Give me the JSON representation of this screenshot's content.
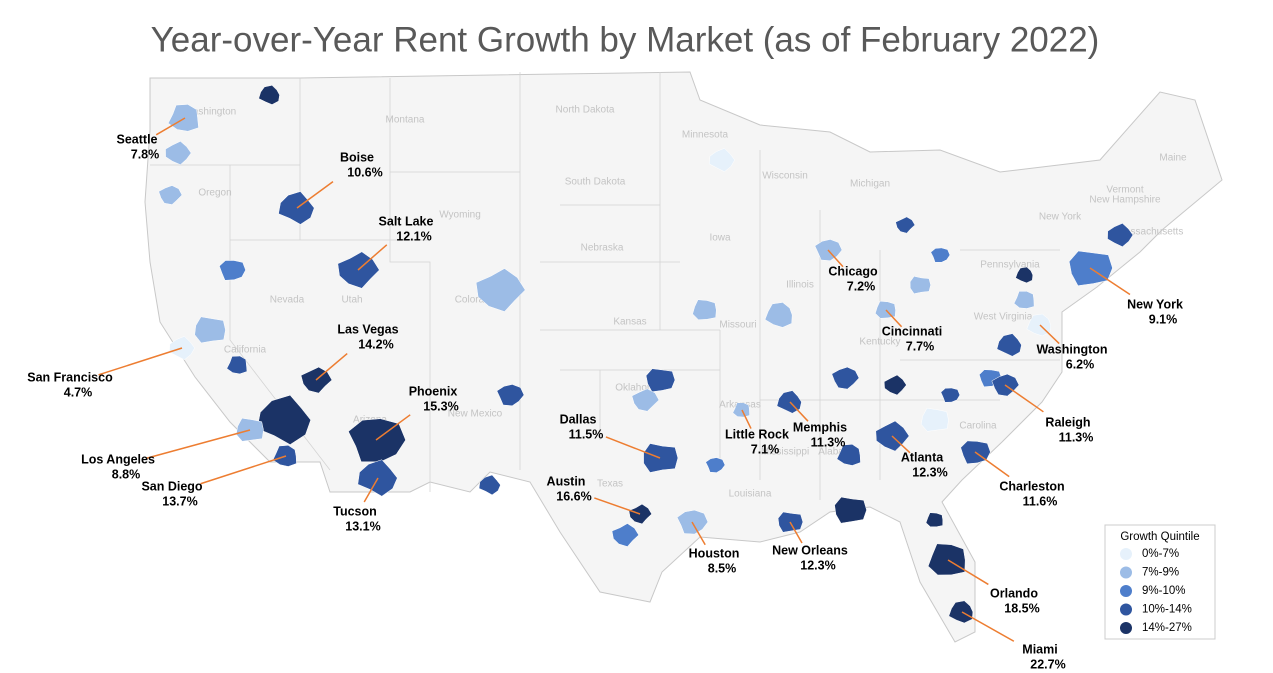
{
  "title": "Year-over-Year Rent Growth by Market (as of February 2022)",
  "states": [
    "Washington",
    "Oregon",
    "Montana",
    "North Dakota",
    "Minnesota",
    "South Dakota",
    "Wyoming",
    "Wisconsin",
    "Michigan",
    "Maine",
    "Nebraska",
    "Iowa",
    "Nevada",
    "Utah",
    "Colorado",
    "Kansas",
    "Missouri",
    "Illinois",
    "Pennsylvania",
    "New York",
    "Vermont",
    "New Hampshire",
    "Massachusetts",
    "West Virginia",
    "Kentucky",
    "California",
    "Arizona",
    "New Mexico",
    "Oklahoma",
    "Texas",
    "Arkansas",
    "Mississippi",
    "Alabama",
    "Louisiana",
    "Carolina"
  ],
  "markets": [
    {
      "name": "Seattle",
      "value": "7.8%"
    },
    {
      "name": "Boise",
      "value": "10.6%"
    },
    {
      "name": "Salt Lake",
      "value": "12.1%"
    },
    {
      "name": "Chicago",
      "value": "7.2%"
    },
    {
      "name": "New York",
      "value": "9.1%"
    },
    {
      "name": "Cincinnati",
      "value": "7.7%"
    },
    {
      "name": "Washington",
      "value": "6.2%"
    },
    {
      "name": "San Francisco",
      "value": "4.7%"
    },
    {
      "name": "Las Vegas",
      "value": "14.2%"
    },
    {
      "name": "Phoenix",
      "value": "15.3%"
    },
    {
      "name": "Dallas",
      "value": "11.5%"
    },
    {
      "name": "Little Rock",
      "value": "7.1%"
    },
    {
      "name": "Memphis",
      "value": "11.3%"
    },
    {
      "name": "Atlanta",
      "value": "12.3%"
    },
    {
      "name": "Raleigh",
      "value": "11.3%"
    },
    {
      "name": "Charleston",
      "value": "11.6%"
    },
    {
      "name": "Los Angeles",
      "value": "8.8%"
    },
    {
      "name": "San Diego",
      "value": "13.7%"
    },
    {
      "name": "Tucson",
      "value": "13.1%"
    },
    {
      "name": "Austin",
      "value": "16.6%"
    },
    {
      "name": "Houston",
      "value": "8.5%"
    },
    {
      "name": "New Orleans",
      "value": "12.3%"
    },
    {
      "name": "Orlando",
      "value": "18.5%"
    },
    {
      "name": "Miami",
      "value": "22.7%"
    }
  ],
  "legend": {
    "title": "Growth Quintile",
    "items": [
      {
        "label": "0%-7%",
        "color": "#e6f1fb"
      },
      {
        "label": "7%-9%",
        "color": "#9cbce6"
      },
      {
        "label": "9%-10%",
        "color": "#4e7ecb"
      },
      {
        "label": "10%-14%",
        "color": "#2f559f"
      },
      {
        "label": "14%-27%",
        "color": "#1b3366"
      }
    ]
  }
}
